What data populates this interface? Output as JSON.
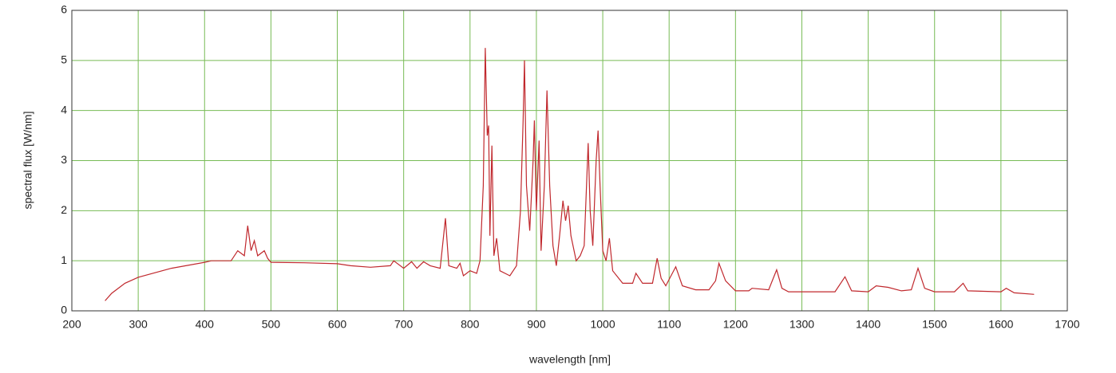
{
  "chart_data": {
    "type": "line",
    "xlabel": "wavelength [nm]",
    "ylabel": "spectral flux [W/nm]",
    "x": [
      250,
      260,
      280,
      300,
      350,
      400,
      410,
      440,
      450,
      460,
      465,
      470,
      475,
      480,
      490,
      495,
      500,
      550,
      600,
      620,
      650,
      680,
      685,
      700,
      712,
      720,
      730,
      740,
      755,
      763,
      768,
      780,
      785,
      790,
      800,
      810,
      815,
      820,
      823,
      826,
      828,
      830,
      833,
      836,
      840,
      845,
      860,
      870,
      876,
      880,
      882,
      885,
      890,
      895,
      897,
      900,
      904,
      907,
      912,
      916,
      920,
      925,
      930,
      935,
      940,
      944,
      948,
      952,
      960,
      966,
      972,
      978,
      981,
      985,
      990,
      993,
      996,
      1000,
      1005,
      1010,
      1015,
      1030,
      1045,
      1050,
      1060,
      1075,
      1082,
      1088,
      1095,
      1110,
      1120,
      1140,
      1160,
      1170,
      1175,
      1185,
      1200,
      1220,
      1225,
      1250,
      1262,
      1270,
      1280,
      1350,
      1365,
      1375,
      1400,
      1412,
      1430,
      1450,
      1465,
      1475,
      1485,
      1500,
      1530,
      1543,
      1550,
      1600,
      1608,
      1620,
      1650
    ],
    "values": [
      0.2,
      0.35,
      0.55,
      0.67,
      0.85,
      0.97,
      1.0,
      1.0,
      1.2,
      1.1,
      1.7,
      1.2,
      1.4,
      1.1,
      1.2,
      1.05,
      0.97,
      0.96,
      0.94,
      0.9,
      0.87,
      0.9,
      1.0,
      0.85,
      0.98,
      0.85,
      0.98,
      0.9,
      0.85,
      1.85,
      0.9,
      0.85,
      0.95,
      0.7,
      0.8,
      0.75,
      1.0,
      2.5,
      5.25,
      3.5,
      3.7,
      1.5,
      3.3,
      1.1,
      1.45,
      0.8,
      0.7,
      0.9,
      2.0,
      3.8,
      5.0,
      2.5,
      1.6,
      3.0,
      3.8,
      2.0,
      3.4,
      1.2,
      2.5,
      4.4,
      2.5,
      1.3,
      0.9,
      1.5,
      2.2,
      1.8,
      2.1,
      1.5,
      1.0,
      1.1,
      1.3,
      3.35,
      2.0,
      1.3,
      3.0,
      3.6,
      2.5,
      1.2,
      1.0,
      1.45,
      0.8,
      0.55,
      0.55,
      0.75,
      0.55,
      0.55,
      1.05,
      0.65,
      0.5,
      0.88,
      0.5,
      0.42,
      0.42,
      0.6,
      0.95,
      0.6,
      0.4,
      0.4,
      0.45,
      0.42,
      0.82,
      0.45,
      0.38,
      0.38,
      0.68,
      0.4,
      0.38,
      0.5,
      0.47,
      0.4,
      0.42,
      0.85,
      0.45,
      0.38,
      0.38,
      0.55,
      0.4,
      0.38,
      0.45,
      0.36,
      0.33
    ],
    "color": "#c0282d",
    "xlim": [
      200,
      1700
    ],
    "xticks": [
      200,
      300,
      400,
      500,
      600,
      700,
      800,
      900,
      1000,
      1100,
      1200,
      1300,
      1400,
      1500,
      1600,
      1700
    ],
    "ylim": [
      0,
      6
    ],
    "yticks": [
      0,
      1,
      2,
      3,
      4,
      5,
      6
    ],
    "grid": true,
    "grid_color": "#77bb55"
  }
}
